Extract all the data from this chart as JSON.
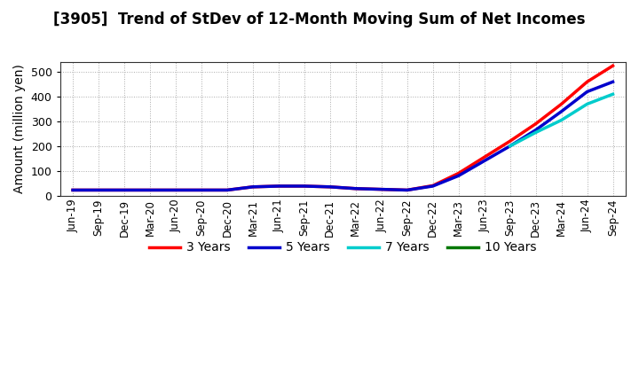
{
  "title": "[3905]  Trend of StDev of 12-Month Moving Sum of Net Incomes",
  "ylabel": "Amount (million yen)",
  "ylim": [
    0,
    540
  ],
  "yticks": [
    0,
    100,
    200,
    300,
    400,
    500
  ],
  "background_color": "#ffffff",
  "grid_color": "#aaaaaa",
  "legend": [
    "3 Years",
    "5 Years",
    "7 Years",
    "10 Years"
  ],
  "legend_colors": [
    "#ff0000",
    "#0000cc",
    "#00cccc",
    "#007700"
  ],
  "x_labels": [
    "Jun-19",
    "Sep-19",
    "Dec-19",
    "Mar-20",
    "Jun-20",
    "Sep-20",
    "Dec-20",
    "Mar-21",
    "Jun-21",
    "Sep-21",
    "Dec-21",
    "Mar-22",
    "Jun-22",
    "Sep-22",
    "Dec-22",
    "Mar-23",
    "Jun-23",
    "Sep-23",
    "Dec-23",
    "Mar-24",
    "Jun-24",
    "Sep-24"
  ],
  "series_3y": [
    22,
    22,
    22,
    22,
    22,
    22,
    22,
    35,
    38,
    38,
    35,
    28,
    25,
    22,
    40,
    90,
    155,
    220,
    290,
    370,
    460,
    525
  ],
  "series_5y": [
    22,
    22,
    22,
    22,
    22,
    22,
    22,
    35,
    38,
    38,
    35,
    28,
    25,
    22,
    38,
    80,
    140,
    200,
    265,
    340,
    420,
    460
  ],
  "series_7y": [
    null,
    null,
    null,
    null,
    null,
    null,
    null,
    null,
    null,
    null,
    null,
    null,
    null,
    null,
    null,
    null,
    null,
    200,
    255,
    305,
    370,
    410
  ],
  "series_10y": [
    null,
    null,
    null,
    null,
    null,
    null,
    null,
    null,
    null,
    null,
    null,
    null,
    null,
    null,
    null,
    null,
    null,
    null,
    null,
    null,
    null,
    null
  ]
}
